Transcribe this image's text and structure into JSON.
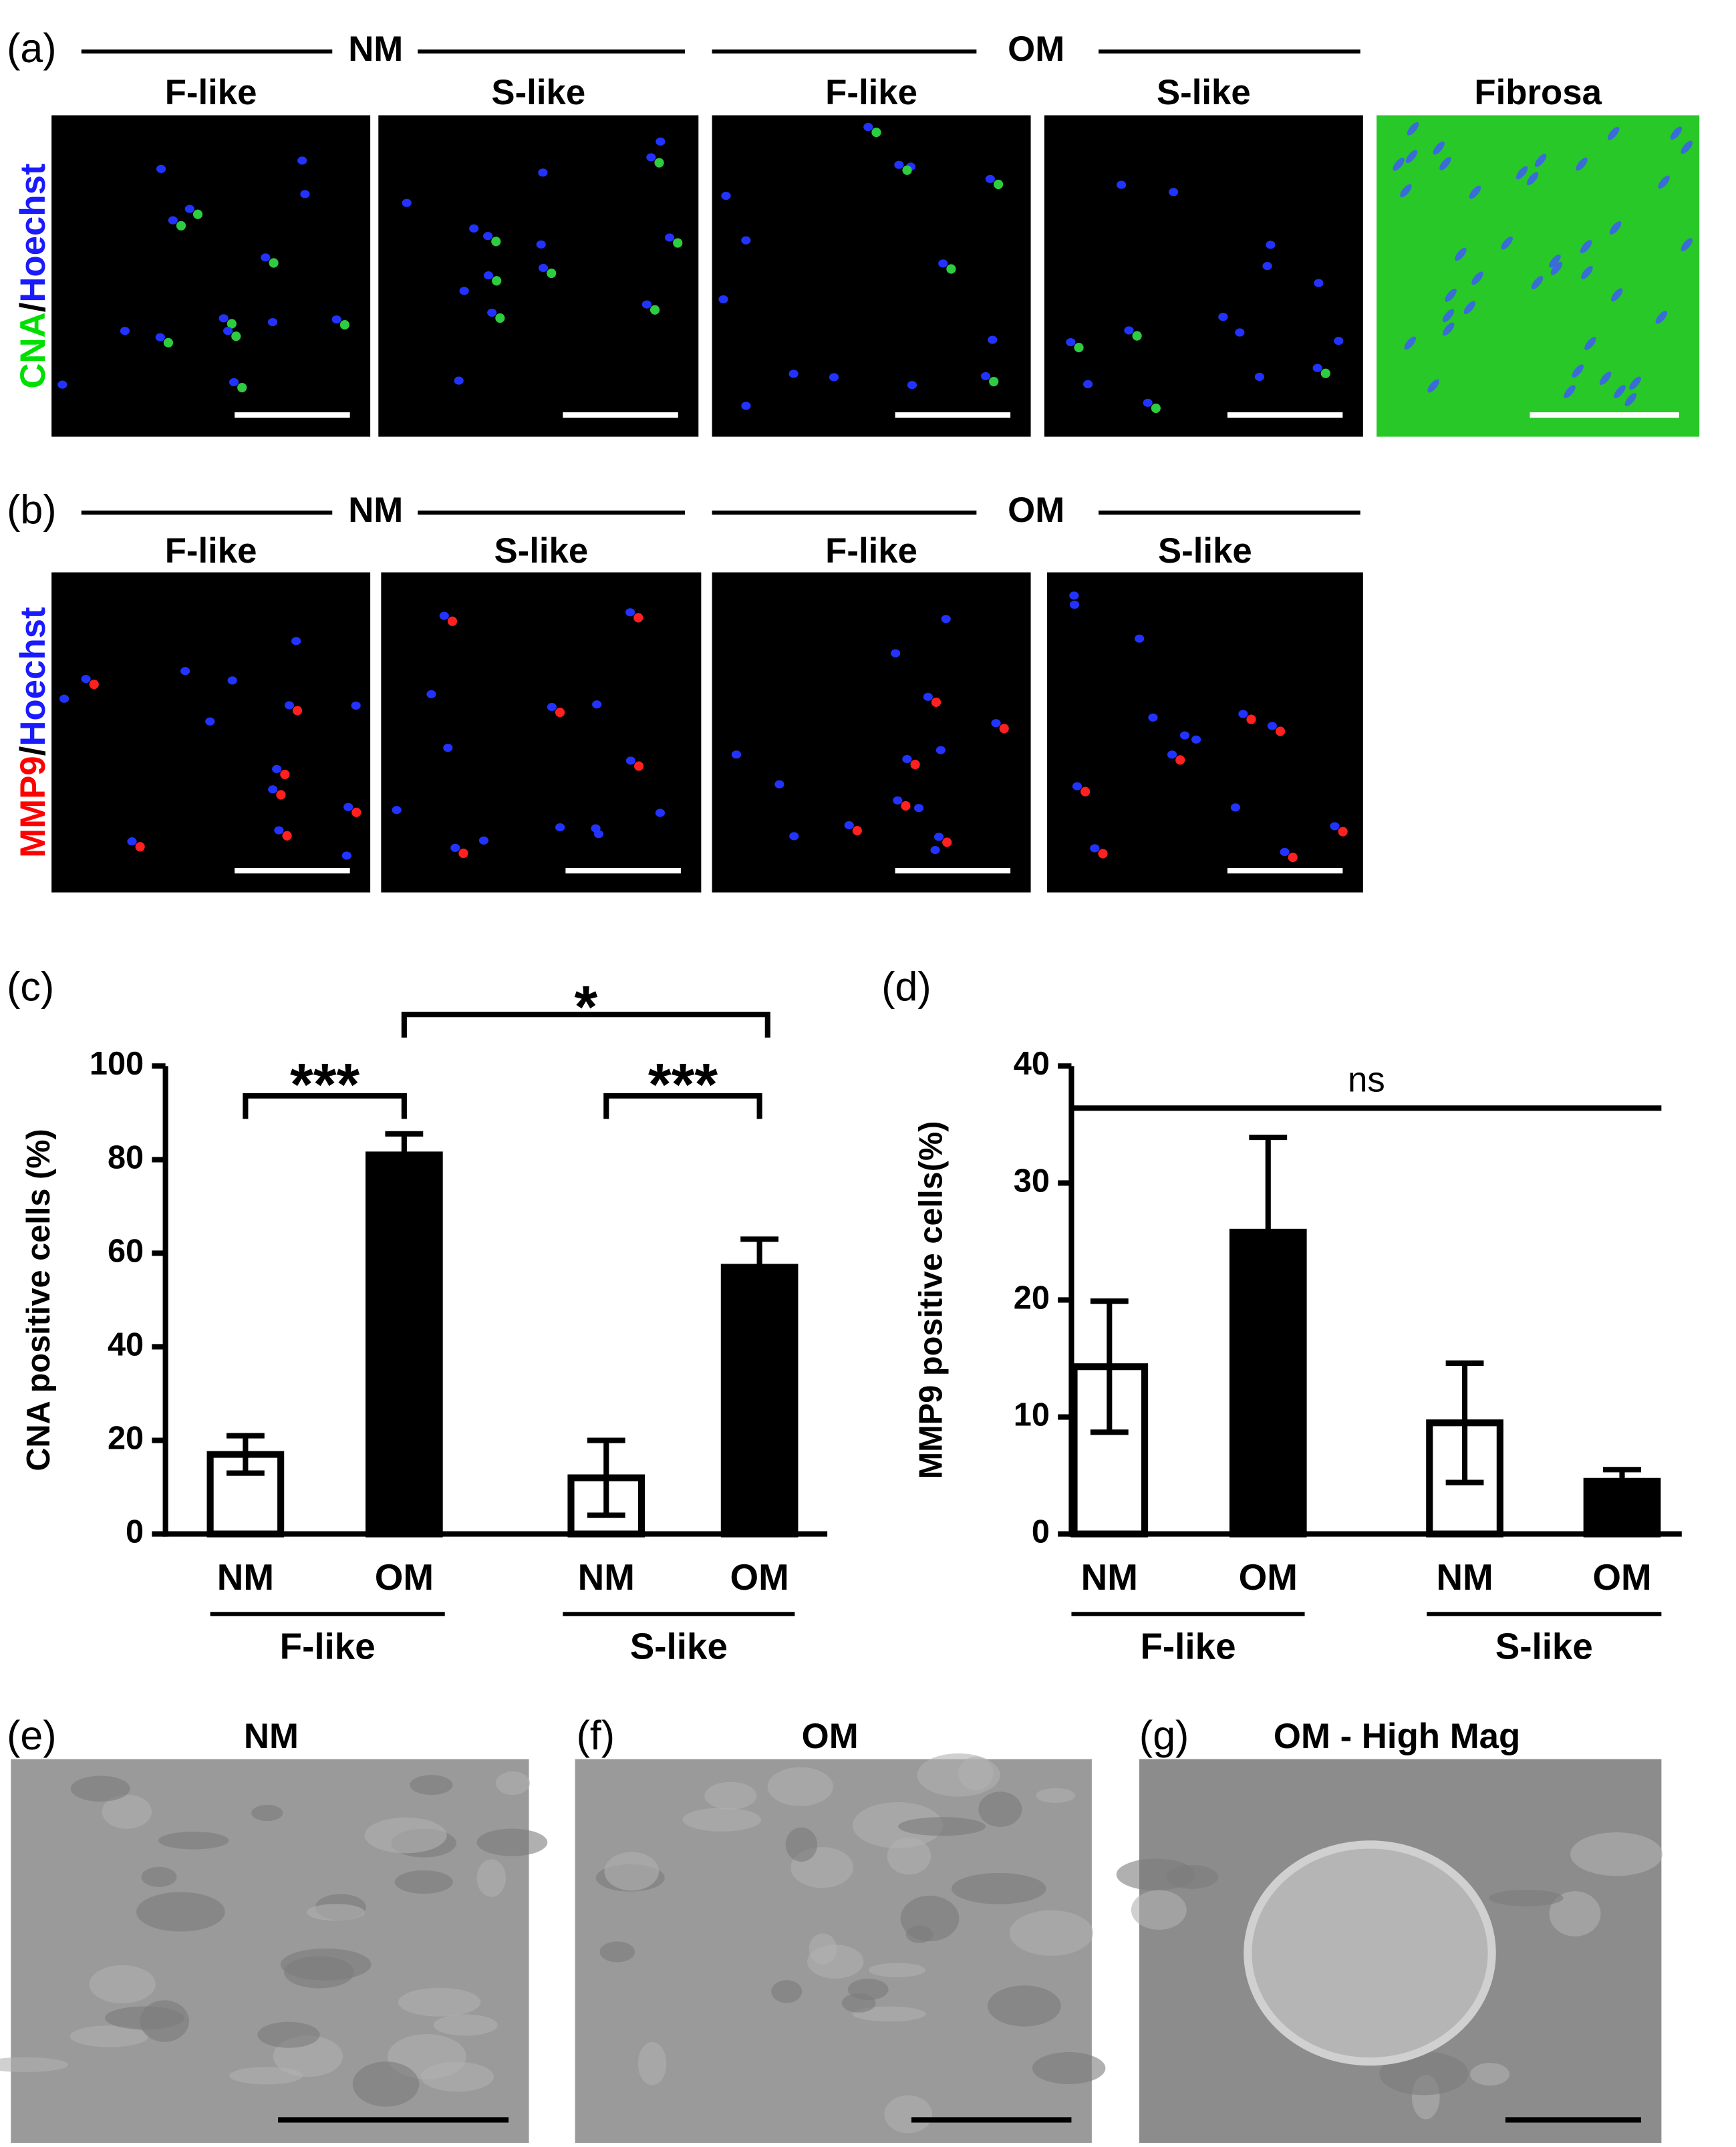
{
  "panel_labels": [
    "(a)",
    "(b)",
    "(c)",
    "(d)",
    "(e)",
    "(f)",
    "(g)"
  ],
  "panel_a": {
    "groups": [
      "NM",
      "OM"
    ],
    "columns": [
      "F-like",
      "S-like",
      "F-like",
      "S-like",
      "Fibrosa"
    ],
    "stain": [
      "CNA",
      "/",
      "Hoechst"
    ]
  },
  "panel_b": {
    "groups": [
      "NM",
      "OM"
    ],
    "columns": [
      "F-like",
      "S-like",
      "F-like",
      "S-like"
    ],
    "stain": [
      "MMP9",
      "/",
      "Hoechst"
    ]
  },
  "sem_titles": [
    "NM",
    "OM",
    "OM - High Mag"
  ],
  "chart_data": [
    {
      "type": "bar",
      "ylabel": "CNA positive cells (%)",
      "categories": [
        "NM",
        "OM",
        "NM",
        "OM"
      ],
      "groups": [
        "F-like",
        "S-like"
      ],
      "values": [
        17,
        81,
        12,
        57
      ],
      "errors": [
        4,
        4.5,
        8,
        6
      ],
      "colors": [
        "#ffffff",
        "#000000",
        "#ffffff",
        "#000000"
      ],
      "ylim": [
        0,
        100
      ],
      "yticks": [
        0,
        20,
        40,
        60,
        80,
        100
      ],
      "annotations": [
        "***",
        "***",
        "*"
      ]
    },
    {
      "type": "bar",
      "ylabel": "MMP9 positive cells(%)",
      "categories": [
        "NM",
        "OM",
        "NM",
        "OM"
      ],
      "groups": [
        "F-like",
        "S-like"
      ],
      "values": [
        14.3,
        25.8,
        9.5,
        4.5
      ],
      "errors": [
        5.6,
        8.1,
        5.1,
        1.0
      ],
      "colors": [
        "#ffffff",
        "#000000",
        "#ffffff",
        "#000000"
      ],
      "ylim": [
        0,
        40
      ],
      "yticks": [
        0,
        10,
        20,
        30,
        40
      ],
      "annotations": [
        "ns"
      ]
    }
  ]
}
